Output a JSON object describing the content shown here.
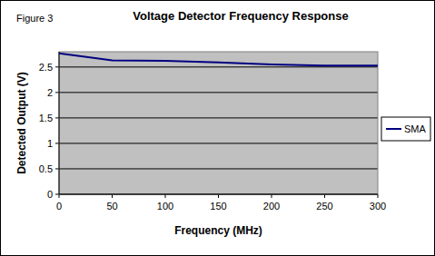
{
  "chart_data": {
    "type": "line",
    "title": "Voltage Detector Frequency Response",
    "annotations": [
      "Figure 3"
    ],
    "x_label": "Frequency (MHz)",
    "y_label": "Detected Output (V)",
    "x": [
      0,
      50,
      100,
      150,
      200,
      250,
      300
    ],
    "series": [
      {
        "name": "SMA",
        "color": "#000080",
        "values": [
          2.77,
          2.63,
          2.62,
          2.59,
          2.55,
          2.53,
          2.53
        ]
      }
    ],
    "xlim": [
      0,
      300
    ],
    "xticks": [
      0,
      50,
      100,
      150,
      200,
      250,
      300
    ],
    "ylim": [
      0,
      2.8
    ],
    "yticks": [
      0,
      0.5,
      1,
      1.5,
      2,
      2.5
    ],
    "grid": true,
    "legend": "right"
  }
}
